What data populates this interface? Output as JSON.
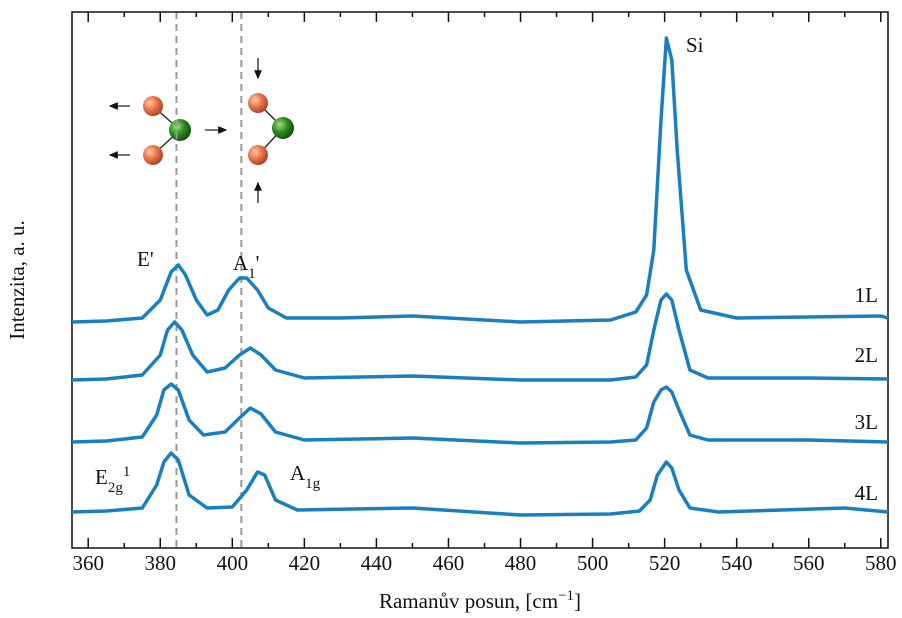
{
  "chart_data": {
    "type": "line",
    "xlabel": {
      "base": "Ramanův posun, [cm",
      "sup": "−1",
      "tail": "]"
    },
    "ylabel": "Intenzita, a. u.",
    "xlim": [
      355.5,
      582
    ],
    "ylim": [
      0,
      536
    ],
    "xticks": [
      360,
      380,
      400,
      420,
      440,
      460,
      480,
      500,
      520,
      540,
      560,
      580
    ],
    "xminorticks": [
      370,
      390,
      410,
      430,
      450,
      470,
      490,
      510,
      530,
      550,
      570
    ],
    "vlines": [
      384.5,
      402.5
    ],
    "annotations": [
      "E'",
      {
        "base": "A",
        "sub": "1",
        "tail": "'"
      },
      "Si",
      {
        "base": "E",
        "sub": "2g",
        "sup": "1"
      },
      {
        "base": "A",
        "sub": "1g"
      }
    ],
    "series": [
      {
        "name": "1L",
        "color": "#1a7fc1",
        "x": [
          355.5,
          365,
          375,
          380,
          383,
          385,
          387,
          390,
          393,
          396,
          399,
          402,
          404,
          407,
          410,
          415,
          430,
          450,
          480,
          505,
          512,
          515,
          517,
          519,
          520.5,
          522,
          523.5,
          526,
          530,
          540,
          580,
          582
        ],
        "values": [
          226,
          227,
          230,
          248,
          276,
          283,
          273,
          248,
          233,
          238,
          258,
          270,
          270,
          258,
          240,
          230,
          230,
          232,
          226,
          228,
          236,
          253,
          298,
          428,
          510,
          488,
          398,
          278,
          238,
          230,
          232,
          230
        ]
      },
      {
        "name": "2L",
        "color": "#1a7fc1",
        "x": [
          355.5,
          365,
          375,
          380,
          382,
          384,
          386,
          389,
          393,
          398,
          402,
          405,
          408,
          412,
          420,
          450,
          480,
          505,
          512,
          515,
          517,
          519,
          520.5,
          522,
          524,
          527,
          532,
          560,
          582
        ],
        "values": [
          168,
          169,
          173,
          193,
          218,
          226,
          218,
          193,
          176,
          180,
          193,
          200,
          193,
          178,
          170,
          172,
          168,
          168,
          171,
          183,
          218,
          248,
          254,
          248,
          218,
          178,
          170,
          170,
          169
        ]
      },
      {
        "name": "3L",
        "color": "#1a7fc1",
        "x": [
          355.5,
          365,
          375,
          379,
          381,
          383,
          385,
          388,
          392,
          398,
          402,
          405,
          408,
          412,
          420,
          450,
          480,
          505,
          512,
          515,
          517,
          519,
          520.5,
          522,
          524,
          527,
          532,
          560,
          582
        ],
        "values": [
          106,
          107,
          111,
          133,
          158,
          164,
          158,
          128,
          113,
          116,
          130,
          140,
          134,
          116,
          108,
          110,
          105,
          106,
          108,
          120,
          146,
          158,
          161,
          156,
          138,
          113,
          108,
          108,
          106
        ]
      },
      {
        "name": "4L",
        "color": "#1a7fc1",
        "x": [
          355.5,
          365,
          375,
          379,
          381,
          383,
          385,
          388,
          393,
          400,
          404,
          407,
          409,
          412,
          418,
          450,
          480,
          505,
          513,
          516,
          518,
          520.5,
          522,
          524,
          527,
          535,
          570,
          582
        ],
        "values": [
          36,
          37,
          40,
          63,
          86,
          95,
          88,
          53,
          40,
          41,
          58,
          76,
          73,
          48,
          38,
          40,
          33,
          34,
          37,
          48,
          73,
          86,
          80,
          58,
          40,
          36,
          40,
          36
        ]
      }
    ]
  }
}
